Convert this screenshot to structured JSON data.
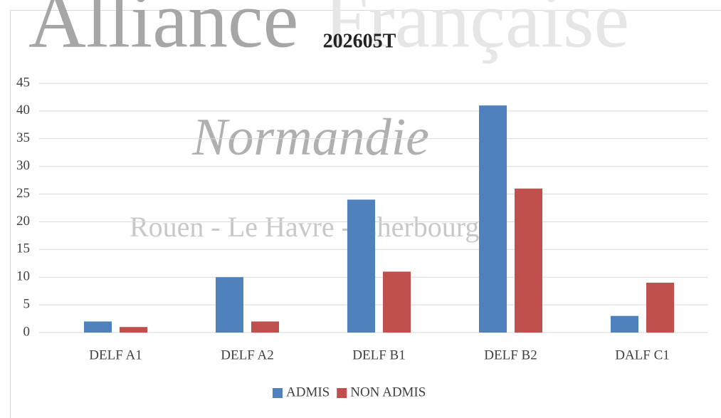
{
  "watermark": {
    "brand": [
      "Alliance",
      "Française"
    ],
    "region": "Normandie",
    "cities": "Rouen - Le Havre - Cherbourg"
  },
  "chart_data": {
    "type": "bar",
    "title": "202605T",
    "categories": [
      "DELF A1",
      "DELF A2",
      "DELF B1",
      "DELF B2",
      "DALF C1"
    ],
    "series": [
      {
        "name": "ADMIS",
        "color": "#4f81bd",
        "values": [
          2,
          10,
          24,
          41,
          3
        ]
      },
      {
        "name": "NON ADMIS",
        "color": "#c0504d",
        "values": [
          1,
          2,
          11,
          26,
          9
        ]
      }
    ],
    "ylim": [
      0,
      45
    ],
    "yticks": [
      0,
      5,
      10,
      15,
      20,
      25,
      30,
      35,
      40,
      45
    ],
    "grid": true,
    "legend": "bottom"
  }
}
